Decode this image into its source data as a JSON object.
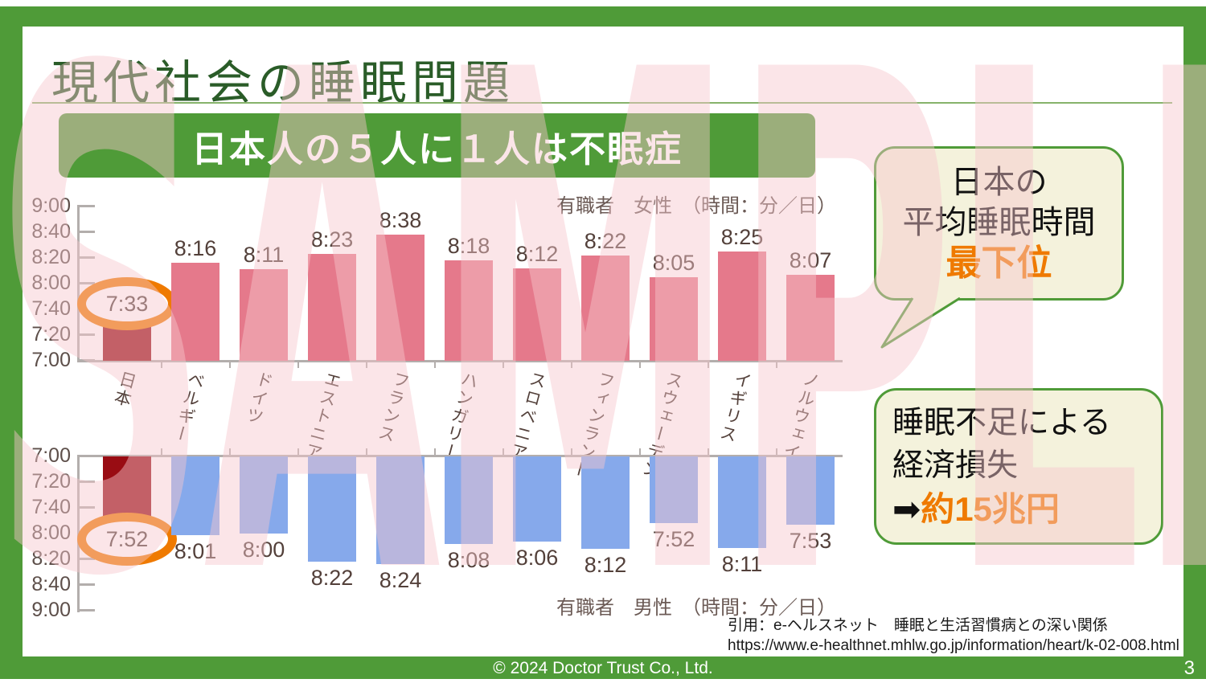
{
  "slide": {
    "title": "現代社会の睡眠問題",
    "banner": "日本人の５人に１人は不眠症",
    "watermark": "SAMPLE",
    "citation_line1": "引用：e-ヘルスネット　睡眠と生活習慣病との深い関係",
    "citation_line2": "https://www.e-healthnet.mhlw.go.jp/information/heart/k-02-008.html",
    "footer_copyright": "© 2024 Doctor Trust Co., Ltd.",
    "page_number": "3"
  },
  "callouts": {
    "bubble": {
      "line1": "日本の",
      "line2": "平均睡眠時間",
      "highlight": "最下位"
    },
    "econ_box": {
      "line1": "睡眠不足による",
      "line2": "経済損失",
      "arrow": "➡",
      "highlight": "約15兆円"
    }
  },
  "colors": {
    "green": "#4f9b38",
    "title-green": "#2a5c28",
    "underline-green": "#86b36b",
    "orange": "#ef7a00",
    "bar-pink": "#e5798b",
    "bar-blue": "#86a9eb",
    "japan-red": "#990c13",
    "cream": "#f4f2dc",
    "label-brown": "#53403a",
    "legend-brown": "#6b5a55",
    "axis-gray": "#b3aeac",
    "watermark-pink": "#f7c7cd"
  },
  "chart_data": [
    {
      "type": "bar",
      "title": "有職者　女性　（時間：分／日）",
      "orientation": "up",
      "categories": [
        "日本",
        "ベルギー",
        "ドイツ",
        "エストニア",
        "フランス",
        "ハンガリー",
        "スロベニア",
        "フィンランド",
        "スウェーデン",
        "イギリス",
        "ノルウェイ"
      ],
      "values": [
        "7:33",
        "8:16",
        "8:11",
        "8:23",
        "8:38",
        "8:18",
        "8:12",
        "8:22",
        "8:05",
        "8:25",
        "8:07"
      ],
      "y_ticks": [
        "9:00",
        "8:40",
        "8:20",
        "8:00",
        "7:40",
        "7:20",
        "7:00"
      ],
      "ylim": [
        "7:00",
        "9:00"
      ],
      "highlight": {
        "index": 0,
        "category": "日本",
        "value": "7:33",
        "marker": "orange-ellipse"
      },
      "bar_color": "#e5798b",
      "highlight_color": "#990c13",
      "grid": false,
      "legend_position": "top-right"
    },
    {
      "type": "bar",
      "title": "有職者　男性　（時間：分／日）",
      "orientation": "down",
      "categories": [
        "日本",
        "ベルギー",
        "ドイツ",
        "エストニア",
        "フランス",
        "ハンガリー",
        "スロベニア",
        "フィンランド",
        "スウェーデン",
        "イギリス",
        "ノルウェイ"
      ],
      "values": [
        "7:52",
        "8:01",
        "8:00",
        "8:22",
        "8:24",
        "8:08",
        "8:06",
        "8:12",
        "7:52",
        "8:11",
        "7:53"
      ],
      "y_ticks": [
        "7:00",
        "7:20",
        "7:40",
        "8:00",
        "8:20",
        "8:40",
        "9:00"
      ],
      "ylim": [
        "7:00",
        "9:00"
      ],
      "highlight": {
        "index": 0,
        "category": "日本",
        "value": "7:52",
        "marker": "orange-ellipse"
      },
      "bar_color": "#86a9eb",
      "highlight_color": "#990c13",
      "grid": false,
      "legend_position": "bottom-right"
    }
  ]
}
